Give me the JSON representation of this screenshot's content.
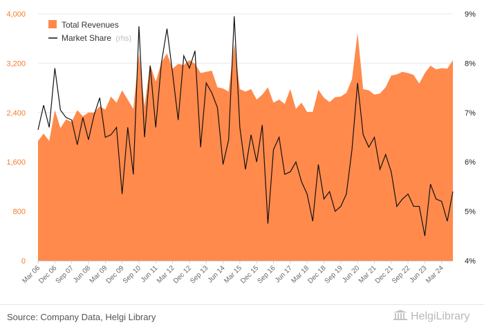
{
  "chart_data": {
    "type": "area",
    "title": "",
    "legend": {
      "position": "top-left",
      "revenue_label": "Total Revenues",
      "share_label": "Market Share",
      "share_note": "(rhs)"
    },
    "colors": {
      "area": "#ff8a4c",
      "line": "#111111",
      "left_ticks": "#f47b2a"
    },
    "y_left": {
      "min": 0,
      "max": 4000,
      "ticks": [
        "0",
        "800",
        "1,600",
        "2,400",
        "3,200",
        "4,000"
      ]
    },
    "y_right": {
      "min": 4,
      "max": 9,
      "ticks": [
        "4%",
        "5%",
        "6%",
        "7%",
        "8%",
        "9%"
      ]
    },
    "x_tick_labels": [
      "Mar 06",
      "Dec 06",
      "Sep 07",
      "Jun 08",
      "Mar 09",
      "Dec 09",
      "Sep 10",
      "Jun 11",
      "Mar 12",
      "Dec 12",
      "Sep 13",
      "Jun 14",
      "Mar 15",
      "Dec 15",
      "Sep 16",
      "Jun 17",
      "Mar 18",
      "Dec 18",
      "Sep 19",
      "Jun 20",
      "Mar 21",
      "Dec 21",
      "Sep 22",
      "Jun 23",
      "Mar 24"
    ],
    "x_start": "Mar 06",
    "frequency": "quarterly",
    "series": [
      {
        "name": "Total Revenues",
        "axis": "left",
        "values": [
          1940,
          2060,
          1940,
          2440,
          2150,
          2290,
          2250,
          2440,
          2340,
          2400,
          2400,
          2500,
          2450,
          2660,
          2560,
          2760,
          2610,
          2460,
          3360,
          2500,
          3180,
          2900,
          3210,
          3360,
          3110,
          3190,
          3170,
          3250,
          3190,
          3040,
          3060,
          3080,
          2810,
          2790,
          2740,
          3520,
          2780,
          2740,
          2780,
          2610,
          2690,
          2810,
          2560,
          2610,
          2540,
          2780,
          2460,
          2560,
          2410,
          2410,
          2770,
          2640,
          2570,
          2650,
          2660,
          2720,
          2940,
          3690,
          2780,
          2760,
          2690,
          2710,
          2810,
          3000,
          3020,
          3060,
          3040,
          3010,
          2870,
          3040,
          3160,
          3100,
          3120,
          3110,
          3250
        ]
      },
      {
        "name": "Market Share",
        "axis": "right",
        "values": [
          6.65,
          7.15,
          6.7,
          7.9,
          7.05,
          6.9,
          6.85,
          6.35,
          6.9,
          6.45,
          6.95,
          7.3,
          6.5,
          6.55,
          6.7,
          5.35,
          6.7,
          5.75,
          8.75,
          6.5,
          7.95,
          6.7,
          8.0,
          8.7,
          7.8,
          6.85,
          8.15,
          7.9,
          8.25,
          6.3,
          7.6,
          7.4,
          7.1,
          5.95,
          6.45,
          8.95,
          6.7,
          5.85,
          6.55,
          6.0,
          6.75,
          4.75,
          6.25,
          6.5,
          5.75,
          5.8,
          6.0,
          5.6,
          5.35,
          4.8,
          5.95,
          5.25,
          5.4,
          5.0,
          5.1,
          5.35,
          6.25,
          7.6,
          6.55,
          6.3,
          6.5,
          5.85,
          6.15,
          5.8,
          5.1,
          5.25,
          5.35,
          5.1,
          5.1,
          4.5,
          5.55,
          5.25,
          5.2,
          4.8,
          5.4
        ]
      }
    ]
  },
  "footer": {
    "source": "Source: Company Data, Helgi Library",
    "brand": "HelgiLibrary"
  }
}
